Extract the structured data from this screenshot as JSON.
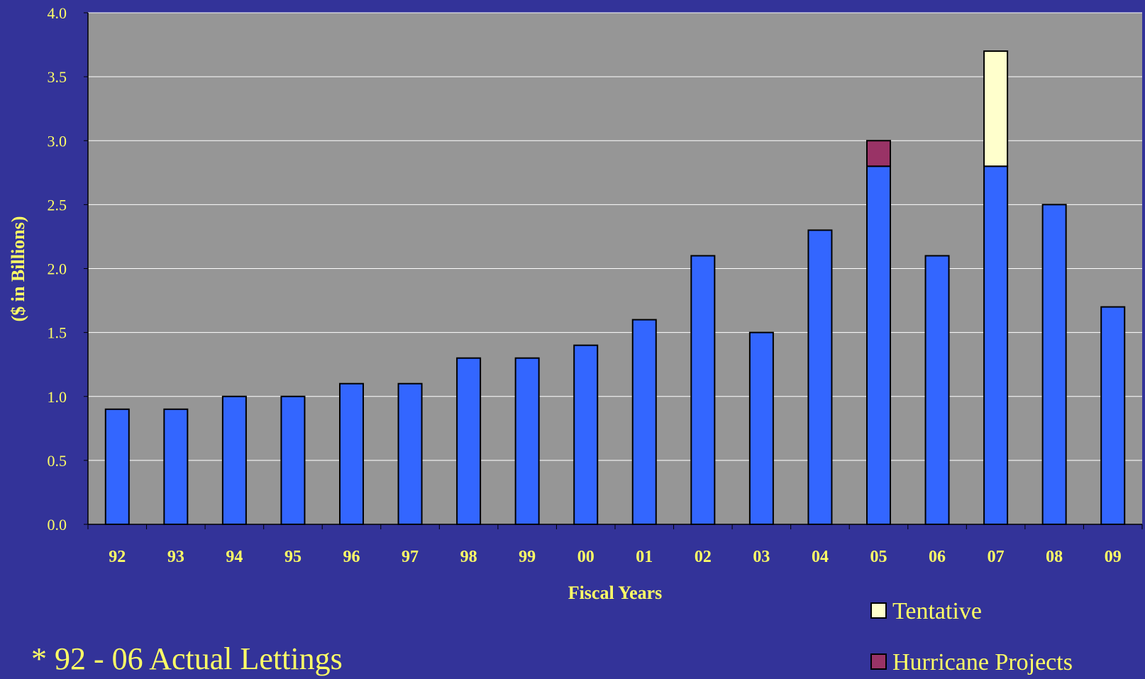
{
  "chart_data": {
    "type": "bar",
    "stacked": true,
    "xlabel": "Fiscal Years",
    "ylabel": "($ in Billions)",
    "ylim": [
      0,
      4
    ],
    "yticks": [
      "0.0",
      "0.5",
      "1.0",
      "1.5",
      "2.0",
      "2.5",
      "3.0",
      "3.5",
      "4.0"
    ],
    "categories": [
      "92",
      "93",
      "94",
      "95",
      "96",
      "97",
      "98",
      "99",
      "00",
      "01",
      "02",
      "03",
      "04",
      "05",
      "06",
      "07",
      "08",
      "09"
    ],
    "series": [
      {
        "values": [
          0.9,
          0.9,
          1.0,
          1.0,
          1.1,
          1.1,
          1.3,
          1.3,
          1.4,
          1.6,
          2.1,
          1.5,
          2.3,
          2.8,
          2.1,
          2.8,
          2.5,
          1.7
        ],
        "color": "#3366ff"
      },
      {
        "name": "Hurricane Projects",
        "values": [
          0,
          0,
          0,
          0,
          0,
          0,
          0,
          0,
          0,
          0,
          0,
          0,
          0,
          0.2,
          0,
          0,
          0,
          0
        ],
        "color": "#993366"
      },
      {
        "name": "Tentative",
        "values": [
          0,
          0,
          0,
          0,
          0,
          0,
          0,
          0,
          0,
          0,
          0,
          0,
          0,
          0,
          0,
          0.9,
          0,
          0
        ],
        "color": "#ffffcc"
      }
    ],
    "grid": true,
    "legend_position": "bottom-right",
    "plot_background": "#969696",
    "page_background": "#333399",
    "text_color": "#ffff66"
  },
  "footnote": "* 92 - 06 Actual Lettings"
}
